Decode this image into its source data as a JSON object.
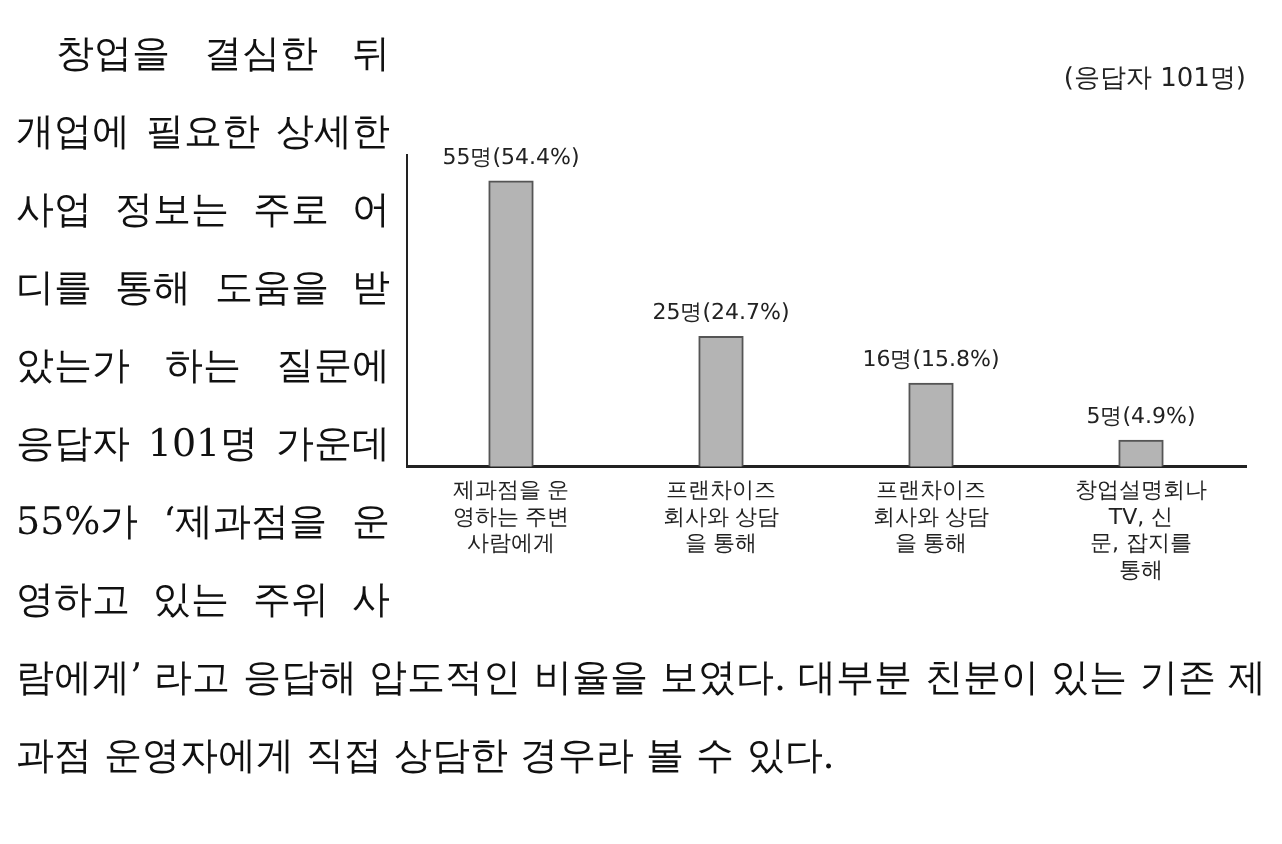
{
  "chart_data": {
    "type": "bar",
    "subtitle": "(응답자 101명)",
    "categories": [
      "제과점을 운영하는 주변 사람에게",
      "프랜차이즈 회사와 상담을 통해",
      "프랜차이즈 회사와 상담을 통해",
      "창업설명회나 TV, 신문, 잡지를 통해"
    ],
    "values": [
      55,
      25,
      16,
      5
    ],
    "color": "#b4b4b4",
    "value_labels": [
      "55명(54.4%)",
      "25명(24.7%)",
      "16명(15.8%)",
      "5명(4.9%)"
    ],
    "tick_labels": "x",
    "grid": false,
    "legend": false,
    "annotations": [
      "창업을 결심한 뒤 개업에 필요한 상세한 사업 정보는 주로 어디를 통해 도움을 받았는가 하는 질문에 응답자 101명 가운데 55%가 ‘제과점을 운영하고 있는 주위 사람에게’ 라고 응답해 압도적인 비율을 보였다. 대부분 친분이 있는 기존 제과점 운영자에게 직접 상담한 경우라 볼 수 있다."
    ]
  }
}
